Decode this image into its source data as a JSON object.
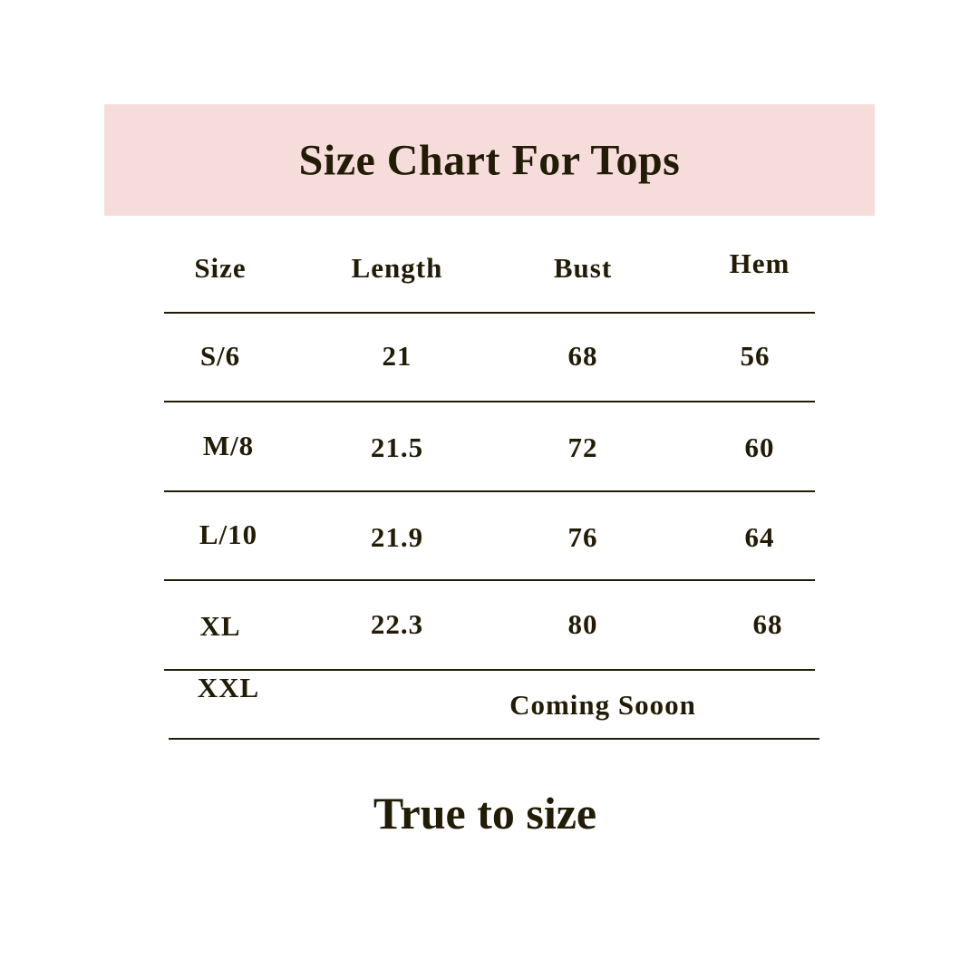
{
  "title": "Size Chart For Tops",
  "colors": {
    "banner": "#f7dcdc",
    "text": "#221c06"
  },
  "table": {
    "headers": [
      "Size",
      "Length",
      "Bust",
      "Hem"
    ],
    "rows": [
      [
        "S/6",
        "21",
        "68",
        "56"
      ],
      [
        "M/8",
        "21.5",
        "72",
        "60"
      ],
      [
        "L/10",
        "21.9",
        "76",
        "64"
      ],
      [
        "XL",
        "22.3",
        "80",
        "68"
      ]
    ],
    "last_row": {
      "size": "XXL",
      "note": "Coming Sooon"
    }
  },
  "footer": "True to size"
}
